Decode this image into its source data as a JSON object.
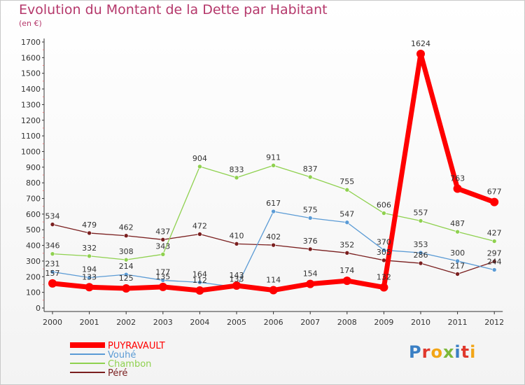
{
  "header": {
    "title": "Evolution du Montant de la Dette par Habitant",
    "subtitle": "(en €)"
  },
  "logo": {
    "letters": [
      "P",
      "r",
      "o",
      "x",
      "i",
      "t",
      "i"
    ],
    "colors": [
      "#3a7fc4",
      "#e0382c",
      "#f2a516",
      "#7cb83a",
      "#3a7fc4",
      "#e0382c",
      "#f2a516"
    ]
  },
  "chart_data": {
    "type": "line",
    "title": "Evolution du Montant de la Dette par Habitant",
    "subtitle": "(en €)",
    "x": [
      "2000",
      "2001",
      "2002",
      "2003",
      "2004",
      "2005",
      "2006",
      "2007",
      "2008",
      "2009",
      "2010",
      "2011",
      "2012"
    ],
    "ylim": [
      0,
      1700
    ],
    "yticks": [
      0,
      100,
      200,
      300,
      400,
      500,
      600,
      700,
      800,
      900,
      1000,
      1100,
      1200,
      1300,
      1400,
      1500,
      1600,
      1700
    ],
    "grid": false,
    "legend_position": "bottom-left",
    "series": [
      {
        "name": "PUYRAVAULT",
        "color": "#ff0000",
        "values": [
          157,
          133,
          125,
          135,
          112,
          143,
          114,
          154,
          174,
          132,
          1624,
          763,
          677
        ],
        "labels": [
          "157",
          "133",
          "125",
          "135",
          "112",
          "143",
          "114",
          "154",
          "174",
          "132",
          "1624",
          "763",
          "677"
        ]
      },
      {
        "name": "Vouhé",
        "color": "#5b9bd5",
        "values": [
          231,
          194,
          214,
          177,
          164,
          133,
          617,
          575,
          547,
          370,
          353,
          300,
          244
        ],
        "labels": [
          "231",
          "194",
          "214",
          "177",
          "164",
          "133",
          "617",
          "575",
          "547",
          "370",
          "353",
          "300",
          "244"
        ]
      },
      {
        "name": "Chambon",
        "color": "#8fd14f",
        "values": [
          346,
          332,
          308,
          343,
          904,
          833,
          911,
          837,
          755,
          606,
          557,
          487,
          427
        ],
        "labels": [
          "346",
          "332",
          "308",
          "343",
          "904",
          "833",
          "911",
          "837",
          "755",
          "606",
          "557",
          "487",
          "427"
        ]
      },
      {
        "name": "Péré",
        "color": "#7a1f1f",
        "values": [
          534,
          479,
          462,
          437,
          472,
          410,
          402,
          376,
          352,
          305,
          286,
          217,
          297
        ],
        "labels": [
          "534",
          "479",
          "462",
          "437",
          "472",
          "410",
          "402",
          "376",
          "352",
          "305",
          "286",
          "217",
          "297"
        ]
      }
    ]
  }
}
